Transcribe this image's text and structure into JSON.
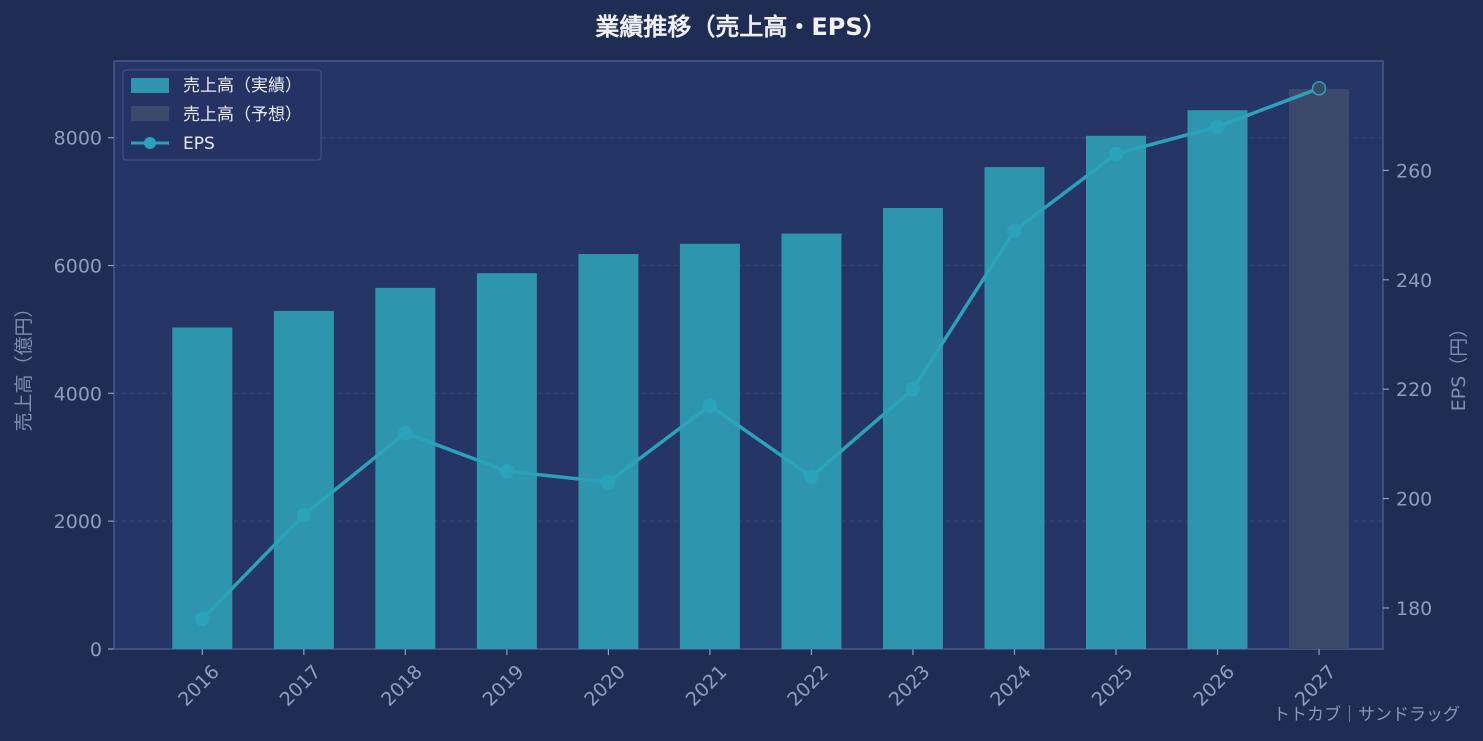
{
  "chart_data": {
    "type": "bar",
    "title": "業績推移（売上高・EPS）",
    "categories": [
      "2016",
      "2017",
      "2018",
      "2019",
      "2020",
      "2021",
      "2022",
      "2023",
      "2024",
      "2025",
      "2026",
      "2027"
    ],
    "series": [
      {
        "name": "売上高（実績）",
        "axis": "left",
        "type": "bar",
        "color": "#2d95ad",
        "values": [
          5030,
          5290,
          5650,
          5880,
          6180,
          6340,
          6500,
          6900,
          7540,
          8030,
          8430,
          null
        ]
      },
      {
        "name": "売上高（予想）",
        "axis": "left",
        "type": "bar",
        "color": "#3b4a6b",
        "values": [
          null,
          null,
          null,
          null,
          null,
          null,
          null,
          null,
          null,
          null,
          null,
          8760
        ]
      },
      {
        "name": "EPS",
        "axis": "right",
        "type": "line",
        "color": "#2aa3ba",
        "values": [
          178,
          197,
          212,
          205,
          203,
          217,
          204,
          220,
          249,
          263,
          268,
          275
        ]
      }
    ],
    "ylabel_left": "売上高（億円）",
    "ylabel_right": "EPS（円）",
    "ylim_left": [
      0,
      9200
    ],
    "ylim_right": [
      172.5,
      280
    ],
    "yticks_left": [
      0,
      2000,
      4000,
      6000,
      8000
    ],
    "yticks_right": [
      180,
      200,
      220,
      240,
      260
    ],
    "grid": true,
    "legend_position": "top-left"
  },
  "watermark": "トトカブ｜サンドラッグ",
  "colors": {
    "page_background": "#1f2c54",
    "plot_background": "#253566",
    "grid": "#36477a",
    "axis": "#4a5a86"
  }
}
